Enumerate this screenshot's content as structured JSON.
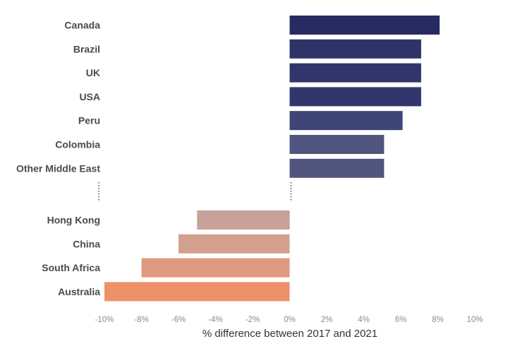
{
  "chart_data": {
    "type": "bar",
    "orientation": "horizontal",
    "categories": [
      "Canada",
      "Brazil",
      "UK",
      "USA",
      "Peru",
      "Colombia",
      "Other Middle East",
      "Hong Kong",
      "China",
      "South Africa",
      "Australia"
    ],
    "values": [
      8.1,
      7.1,
      7.1,
      7.1,
      6.1,
      5.1,
      5.1,
      -5.0,
      -6.0,
      -8.0,
      -10.0
    ],
    "bar_colors": [
      "#262c62",
      "#2e3468",
      "#30366b",
      "#31376c",
      "#3e4677",
      "#50557f",
      "#515680",
      "#c7a19a",
      "#d3a08f",
      "#e09a80",
      "#ee9068"
    ],
    "gap_after_index": 6,
    "xlabel": "% difference between 2017 and 2021",
    "xlim": [
      -10,
      10
    ],
    "xticks": [
      "-10%",
      "-8%",
      "-6%",
      "-4%",
      "-2%",
      "0%",
      "2%",
      "4%",
      "6%",
      "8%",
      "10%"
    ],
    "grid": false,
    "legend": "none"
  }
}
